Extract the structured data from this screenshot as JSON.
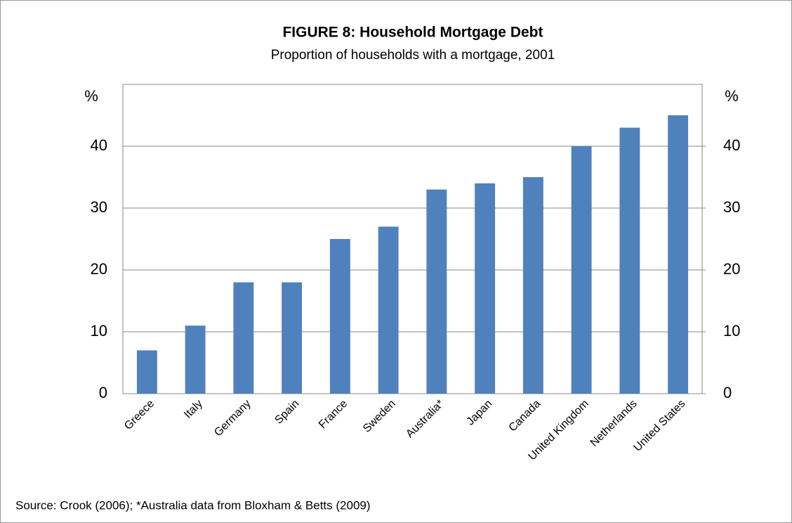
{
  "chart_data": {
    "type": "bar",
    "title": "FIGURE 8: Household Mortgage Debt",
    "subtitle": "Proportion of households with a mortgage, 2001",
    "y_label": "%",
    "y2_label": "%",
    "categories": [
      "Greece",
      "Italy",
      "Germany",
      "Spain",
      "France",
      "Sweden",
      "Australia*",
      "Japan",
      "Canada",
      "United Kingdom",
      "Netherlands",
      "United States"
    ],
    "values": [
      7,
      11,
      18,
      18,
      25,
      27,
      33,
      34,
      35,
      40,
      43,
      45
    ],
    "color": "#4f81bd",
    "ylim": [
      0,
      50
    ],
    "yticks": [
      0,
      10,
      20,
      30,
      40
    ],
    "y2lim": [
      0,
      50
    ],
    "y2ticks": [
      0,
      10,
      20,
      30,
      40
    ],
    "grid": true,
    "source": "Source: Crook (2006); *Australia data from Bloxham & Betts (2009)"
  }
}
